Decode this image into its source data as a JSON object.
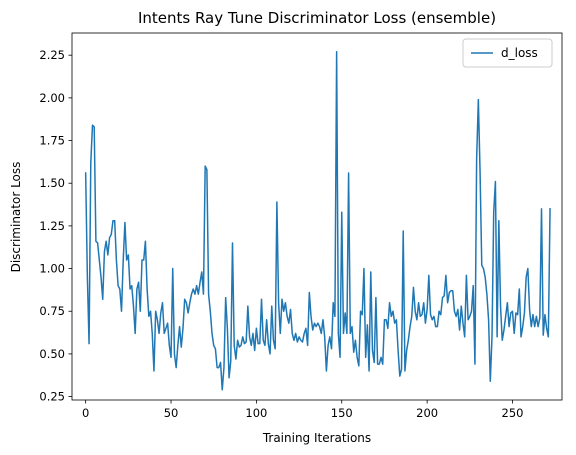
{
  "chart_data": {
    "type": "line",
    "title": "Intents Ray Tune Discriminator Loss (ensemble)",
    "xlabel": "Training Iterations",
    "ylabel": "Discriminator Loss",
    "xlim": [
      -8,
      279
    ],
    "ylim": [
      0.23,
      2.38
    ],
    "xticks": [
      0,
      50,
      100,
      150,
      200,
      250
    ],
    "yticks": [
      0.25,
      0.5,
      0.75,
      1.0,
      1.25,
      1.5,
      1.75,
      2.0,
      2.25
    ],
    "legend_position": "top-right",
    "grid": false,
    "series": [
      {
        "name": "d_loss",
        "color": "#1f77b4",
        "values": [
          1.56,
          0.95,
          0.56,
          1.62,
          1.84,
          1.83,
          1.16,
          1.15,
          1.05,
          0.95,
          0.82,
          1.1,
          1.16,
          1.08,
          1.18,
          1.2,
          1.28,
          1.28,
          1.05,
          0.9,
          0.88,
          0.75,
          1.05,
          1.27,
          1.05,
          1.08,
          0.88,
          0.9,
          0.78,
          0.62,
          0.88,
          0.92,
          0.75,
          1.05,
          1.05,
          1.16,
          0.88,
          0.72,
          0.75,
          0.62,
          0.4,
          0.75,
          0.7,
          0.62,
          0.74,
          0.8,
          0.62,
          0.65,
          0.68,
          0.55,
          0.48,
          1.0,
          0.5,
          0.42,
          0.55,
          0.66,
          0.54,
          0.65,
          0.82,
          0.8,
          0.74,
          0.8,
          0.85,
          0.88,
          0.85,
          0.9,
          0.85,
          0.92,
          0.98,
          0.85,
          1.6,
          1.58,
          0.85,
          0.75,
          0.62,
          0.55,
          0.53,
          0.42,
          0.42,
          0.45,
          0.29,
          0.42,
          0.83,
          0.65,
          0.36,
          0.46,
          1.15,
          0.55,
          0.47,
          0.58,
          0.54,
          0.55,
          0.6,
          0.56,
          0.57,
          0.78,
          0.6,
          0.55,
          0.62,
          0.52,
          0.65,
          0.56,
          0.56,
          0.82,
          0.58,
          0.55,
          0.7,
          0.56,
          0.5,
          0.78,
          0.58,
          0.53,
          1.39,
          0.8,
          0.62,
          0.82,
          0.75,
          0.8,
          0.72,
          0.68,
          0.76,
          0.62,
          0.58,
          0.62,
          0.57,
          0.6,
          0.58,
          0.57,
          0.62,
          0.65,
          0.55,
          0.86,
          0.72,
          0.64,
          0.68,
          0.66,
          0.68,
          0.66,
          0.62,
          0.7,
          0.6,
          0.4,
          0.55,
          0.6,
          0.53,
          0.8,
          0.72,
          2.27,
          0.62,
          0.48,
          1.33,
          0.62,
          0.74,
          0.62,
          1.56,
          0.62,
          0.66,
          0.51,
          0.58,
          0.48,
          0.43,
          0.75,
          0.73,
          1.0,
          0.48,
          0.67,
          0.4,
          0.98,
          0.52,
          0.45,
          0.83,
          0.44,
          0.44,
          0.48,
          0.44,
          0.7,
          0.7,
          0.65,
          0.8,
          0.72,
          0.75,
          0.68,
          0.7,
          0.52,
          0.37,
          0.41,
          1.22,
          0.4,
          0.52,
          0.58,
          0.66,
          0.72,
          0.89,
          0.75,
          0.7,
          0.8,
          0.72,
          0.73,
          0.8,
          0.68,
          0.76,
          0.96,
          0.73,
          0.7,
          0.72,
          0.66,
          0.66,
          0.75,
          0.73,
          0.83,
          0.84,
          0.96,
          0.8,
          0.86,
          0.87,
          0.87,
          0.75,
          0.72,
          0.76,
          0.64,
          0.78,
          0.68,
          0.6,
          0.96,
          0.7,
          0.72,
          0.75,
          0.9,
          0.44,
          1.64,
          1.99,
          1.57,
          1.02,
          1.0,
          0.95,
          0.85,
          0.7,
          0.34,
          0.6,
          1.33,
          1.51,
          0.6,
          1.28,
          0.78,
          0.58,
          0.64,
          0.72,
          0.8,
          0.66,
          0.74,
          0.75,
          0.62,
          0.74,
          0.73,
          0.88,
          0.6,
          0.66,
          0.74,
          0.95,
          1.0,
          0.76,
          0.66,
          0.73,
          0.66,
          0.72,
          0.66,
          0.71,
          1.35,
          0.61,
          0.73,
          0.65,
          0.6,
          1.35
        ]
      }
    ]
  }
}
